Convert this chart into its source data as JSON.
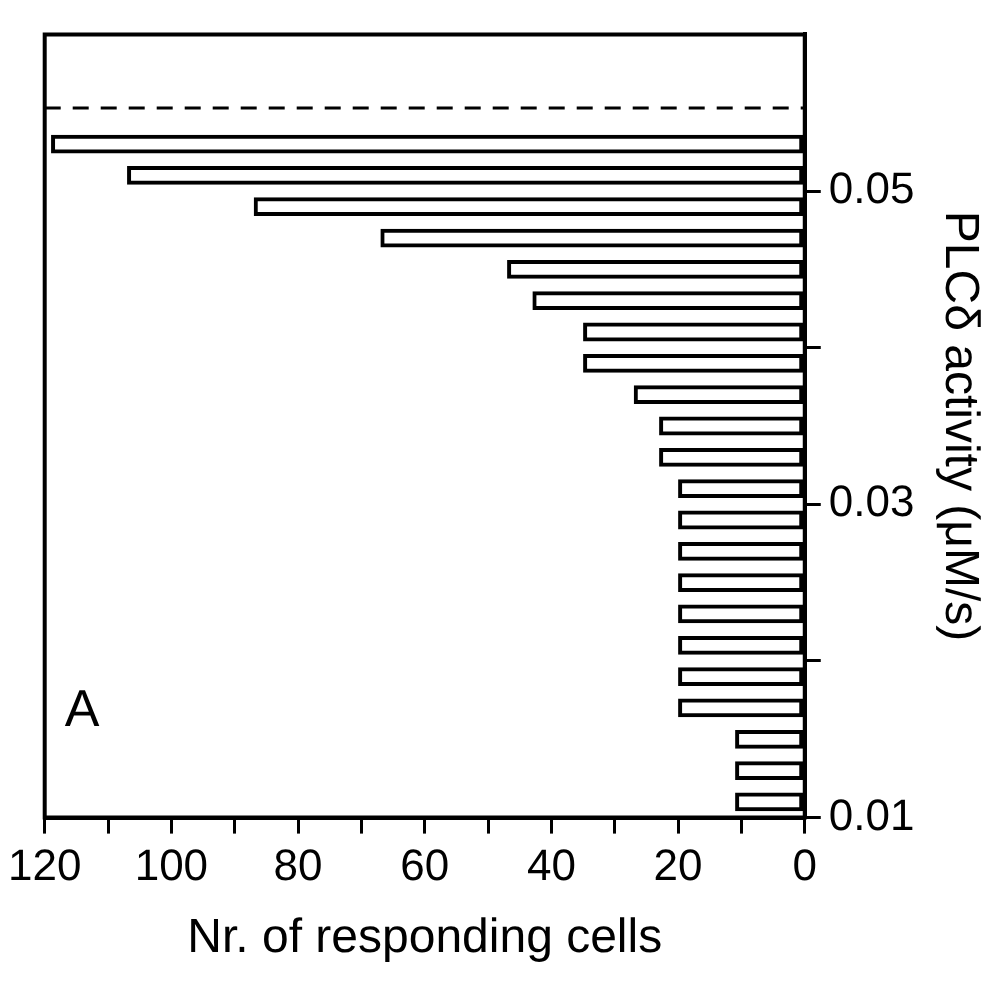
{
  "chart_data": {
    "type": "bar",
    "orientation": "horizontal",
    "x": [
      0.011,
      0.013,
      0.015,
      0.017,
      0.019,
      0.021,
      0.023,
      0.025,
      0.027,
      0.029,
      0.031,
      0.033,
      0.035,
      0.037,
      0.039,
      0.041,
      0.043,
      0.045,
      0.047,
      0.049,
      0.051,
      0.053
    ],
    "values": [
      11,
      11,
      11,
      20,
      20,
      20,
      20,
      20,
      20,
      20,
      20,
      23,
      23,
      27,
      35,
      35,
      43,
      47,
      67,
      87,
      107,
      119
    ],
    "color": "#000000",
    "xlabel": "Nr. of responding cells",
    "ylabel": "PLCδ activity (μM/s)",
    "xlim": [
      120,
      0
    ],
    "xticks": [
      120,
      {
        "value": 110,
        "label": null
      },
      100,
      {
        "value": 90,
        "label": null
      },
      80,
      {
        "value": 70,
        "label": null
      },
      60,
      {
        "value": 50,
        "label": null
      },
      40,
      {
        "value": 30,
        "label": null
      },
      20,
      {
        "value": 10,
        "label": null
      },
      0
    ],
    "ylim": [
      0.01,
      0.06
    ],
    "yticks": [
      0.01,
      {
        "value": 0.02,
        "label": null
      },
      0.03,
      {
        "value": 0.04,
        "label": null
      },
      0.05
    ],
    "ref_lines": [
      {
        "axis": "y",
        "value": 0.0553,
        "line_style": "dashed"
      }
    ],
    "annotations": [
      "A"
    ],
    "grid": false,
    "legend": false
  }
}
